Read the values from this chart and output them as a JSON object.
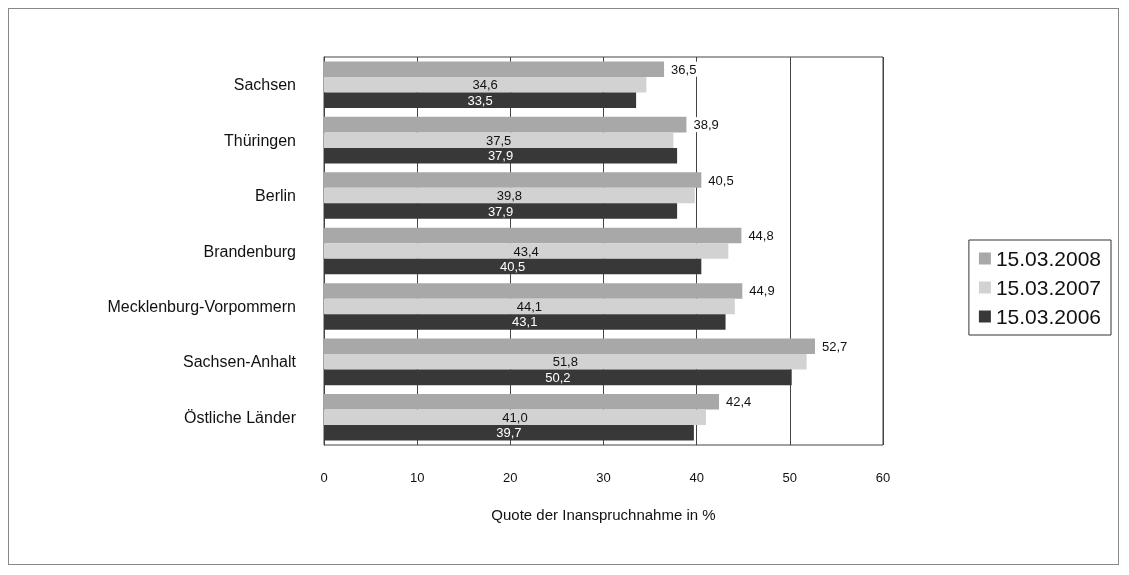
{
  "chart_data": {
    "type": "bar",
    "orientation": "horizontal",
    "xlabel": "Quote der Inanspruchnahme in %",
    "categories": [
      "Sachsen",
      "Thüringen",
      "Berlin",
      "Brandenburg",
      "Mecklenburg-Vorpommern",
      "Sachsen-Anhalt",
      "Östliche Länder"
    ],
    "series": [
      {
        "name": "15.03.2008",
        "color": "#a8a8a8",
        "values": [
          36.5,
          38.9,
          40.5,
          44.8,
          44.9,
          52.7,
          42.4
        ],
        "value_labels": [
          "36,5",
          "38,9",
          "40,5",
          "44,8",
          "44,9",
          "52,7",
          "42,4"
        ]
      },
      {
        "name": "15.03.2007",
        "color": "#d2d2d2",
        "values": [
          34.6,
          37.5,
          39.8,
          43.4,
          44.1,
          51.8,
          41.0
        ],
        "value_labels": [
          "34,6",
          "37,5",
          "39,8",
          "43,4",
          "44,1",
          "51,8",
          "41,0"
        ]
      },
      {
        "name": "15.03.2006",
        "color": "#383838",
        "values": [
          33.5,
          37.9,
          37.9,
          40.5,
          43.1,
          50.2,
          39.7
        ],
        "value_labels": [
          "33,5",
          "37,9",
          "37,9",
          "40,5",
          "43,1",
          "50,2",
          "39,7"
        ]
      }
    ],
    "xlim": [
      0,
      60
    ],
    "xticks": [
      0,
      10,
      20,
      30,
      40,
      50,
      60
    ],
    "grid": "x",
    "legend": "right"
  }
}
